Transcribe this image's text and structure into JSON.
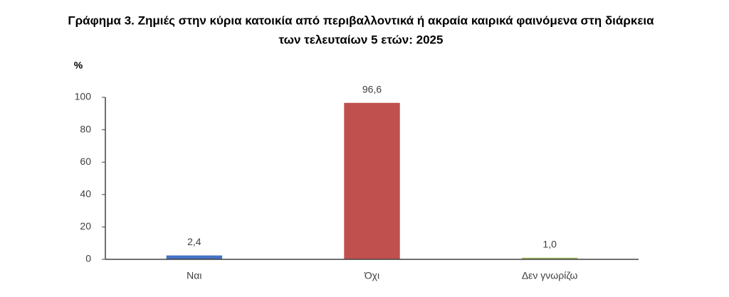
{
  "chart_data": {
    "type": "bar",
    "title": [
      "Γράφημα 3. Ζημιές στην κύρια κατοικία από περιβαλλοντικά ή ακραία καιρικά φαινόμενα στη διάρκεια",
      "των τελευταίων 5 ετών: 2025"
    ],
    "y_label": "%",
    "categories": [
      "Ναι",
      "Όχι",
      "Δεν γνωρίζω"
    ],
    "values": [
      2.4,
      96.6,
      1.0
    ],
    "value_labels": [
      "2,4",
      "96,6",
      "1,0"
    ],
    "colors": [
      "#4472c4",
      "#c0504d",
      "#9bbb59"
    ],
    "ylim": [
      0,
      100
    ],
    "yticks": [
      0,
      20,
      40,
      60,
      80,
      100
    ],
    "grid": false
  }
}
